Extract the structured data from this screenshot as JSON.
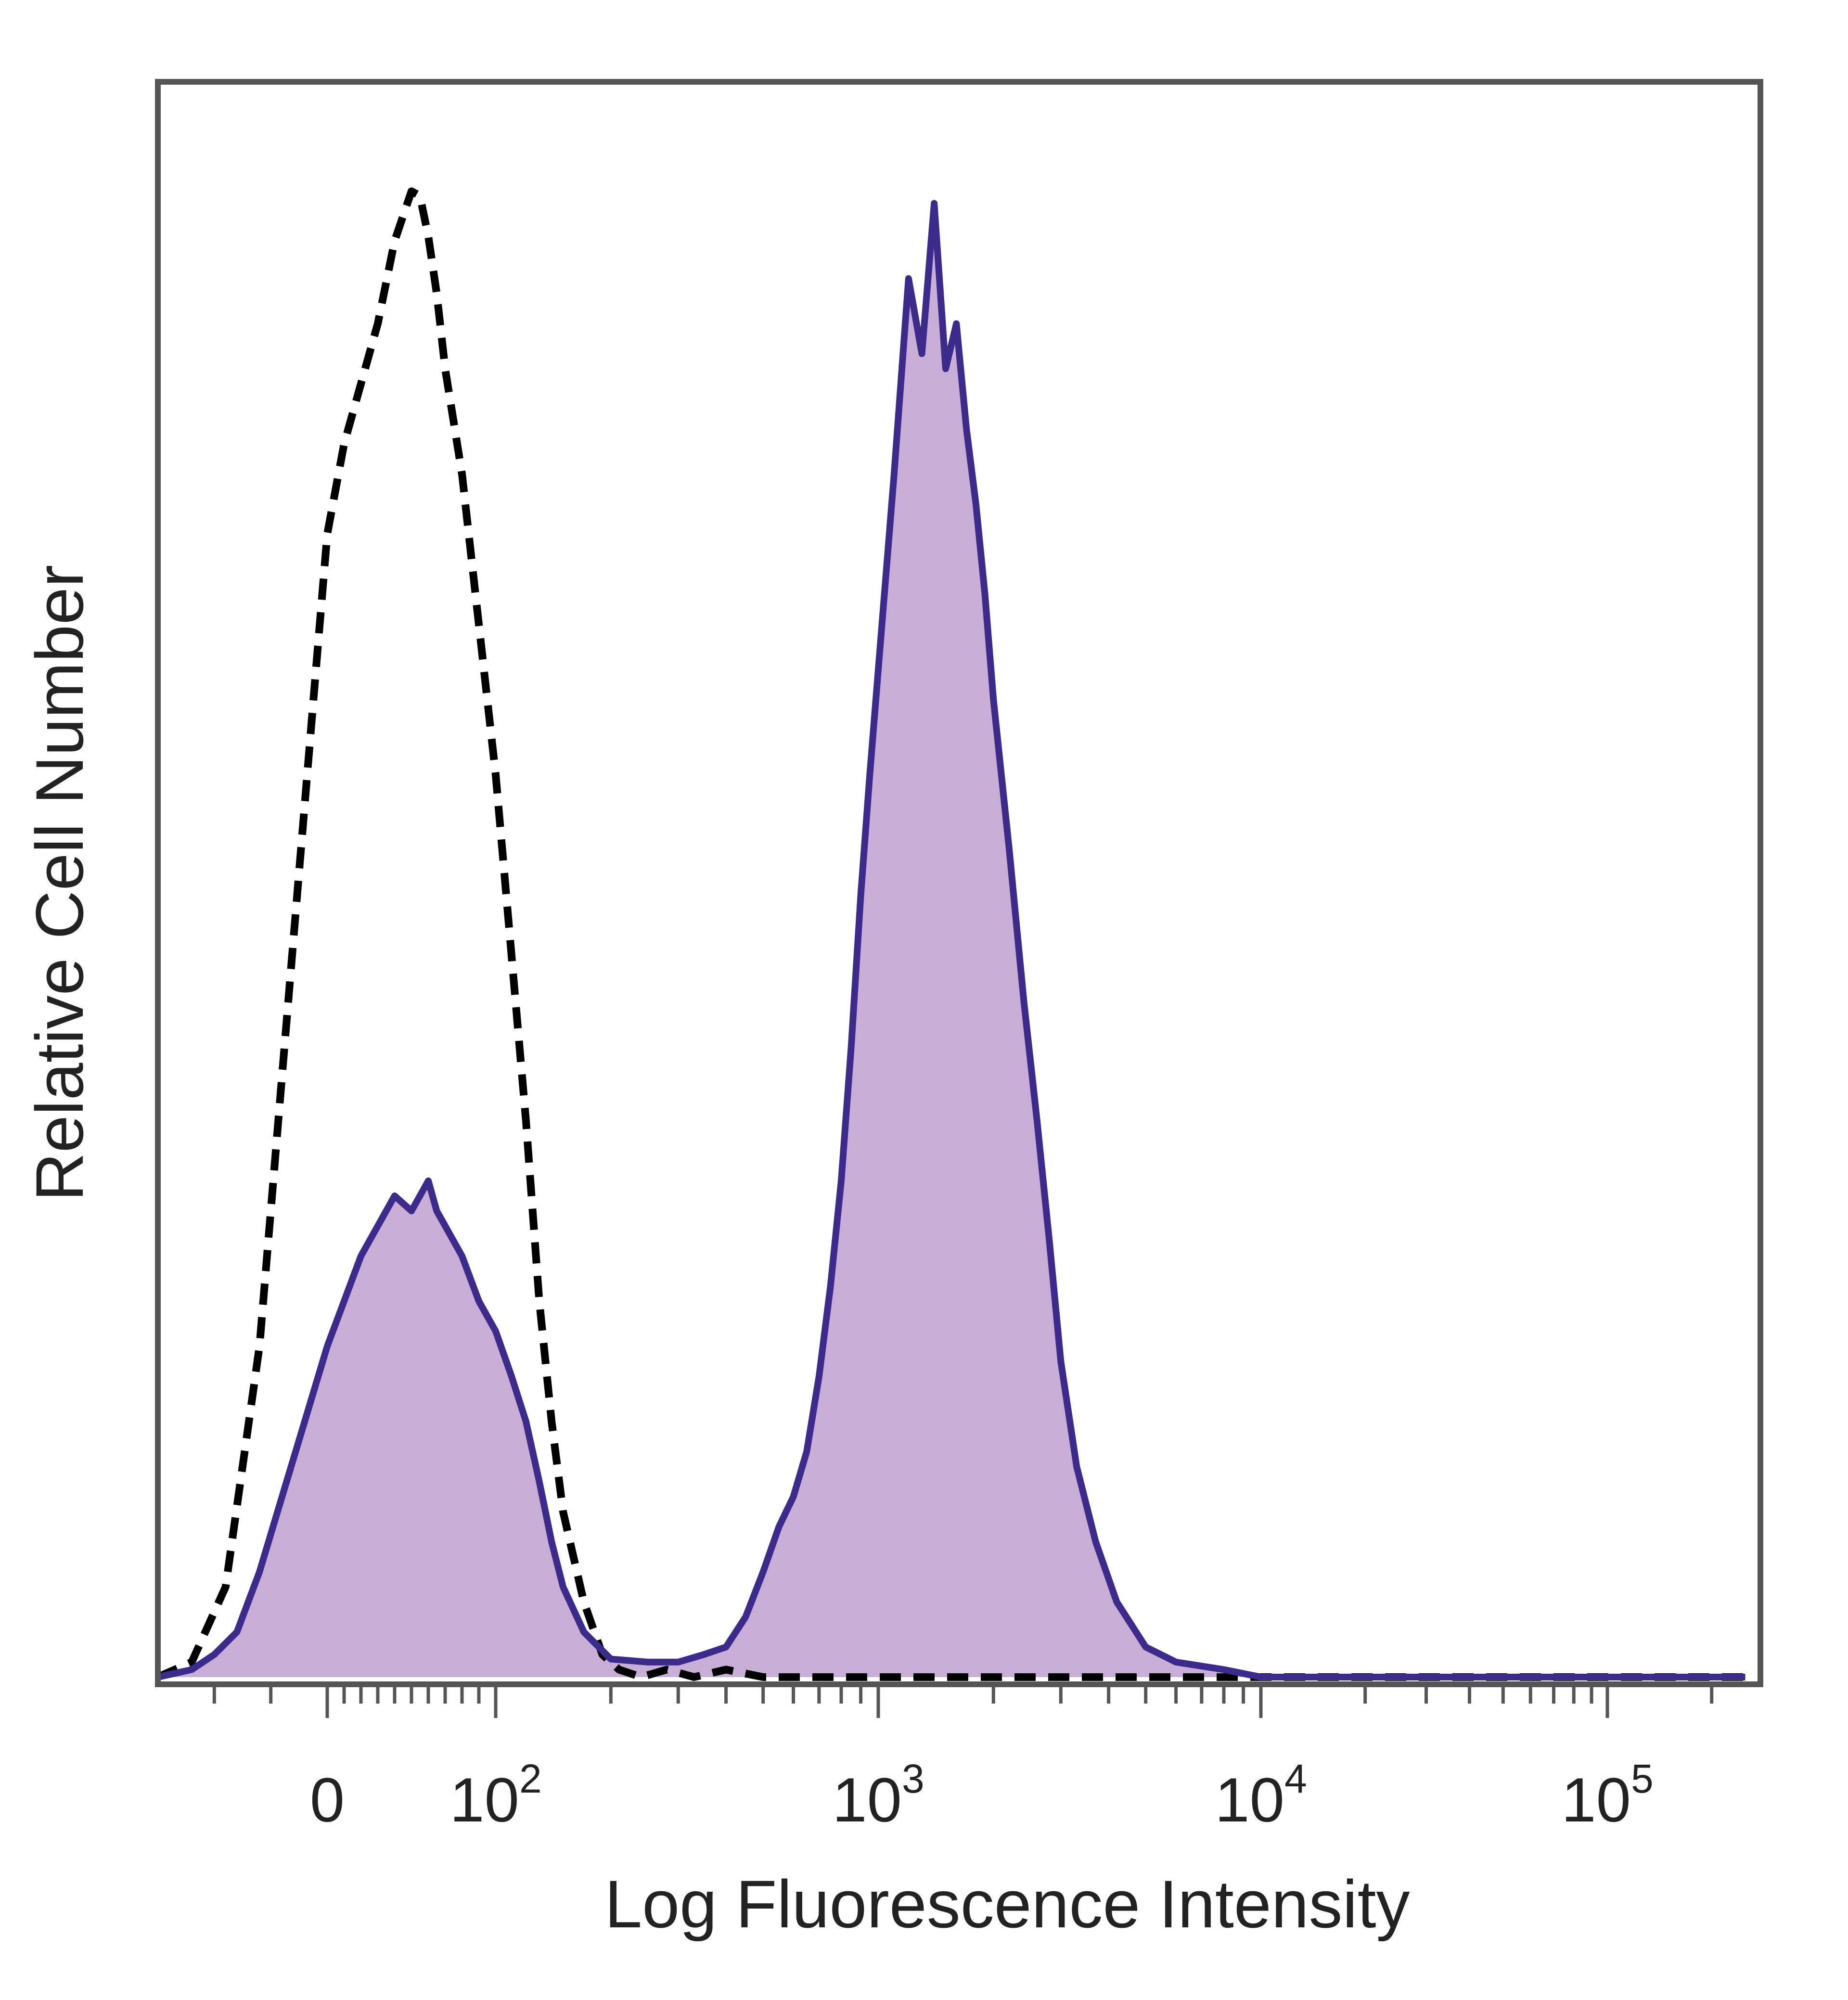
{
  "chart_data": {
    "type": "area",
    "xlabel": "Log Fluorescence Intensity",
    "ylabel": "Relative Cell Number",
    "x_scale": "biexponential",
    "grid": false,
    "legend": "none",
    "xlim": [
      -150,
      250000
    ],
    "ylim": [
      0,
      1.0
    ],
    "x_ticks": [
      {
        "value": 0,
        "label": "0",
        "exp": ""
      },
      {
        "value": 100,
        "label": "10",
        "exp": "2"
      },
      {
        "value": 1000,
        "label": "10",
        "exp": "3"
      },
      {
        "value": 10000,
        "label": "10",
        "exp": "4"
      },
      {
        "value": 100000,
        "label": "10",
        "exp": "5"
      }
    ],
    "series": [
      {
        "style": "dashed",
        "color": "#000000",
        "fill": "none",
        "x": [
          -150,
          -120,
          -90,
          -60,
          -40,
          -20,
          -10,
          0,
          10,
          20,
          30,
          40,
          50,
          55,
          60,
          65,
          70,
          80,
          90,
          100,
          110,
          120,
          130,
          140,
          150,
          170,
          190,
          210,
          240,
          280,
          330,
          400,
          500,
          700,
          1000,
          2000,
          5000,
          10000,
          50000,
          250000
        ],
        "y": [
          0,
          0.01,
          0.06,
          0.22,
          0.4,
          0.58,
          0.67,
          0.76,
          0.82,
          0.86,
          0.9,
          0.955,
          0.988,
          0.985,
          0.958,
          0.92,
          0.87,
          0.8,
          0.7,
          0.6,
          0.48,
          0.37,
          0.25,
          0.17,
          0.11,
          0.05,
          0.015,
          0.005,
          0,
          0.005,
          0,
          0.005,
          0,
          0,
          0,
          0,
          0,
          0,
          0,
          0
        ]
      },
      {
        "style": "solid",
        "color": "#3d2b8c",
        "fill": "#c8aed6",
        "x": [
          -150,
          -120,
          -100,
          -80,
          -60,
          -40,
          -20,
          0,
          10,
          20,
          30,
          40,
          50,
          55,
          60,
          65,
          70,
          80,
          90,
          100,
          110,
          120,
          130,
          140,
          150,
          170,
          200,
          250,
          300,
          350,
          400,
          450,
          500,
          550,
          600,
          650,
          700,
          750,
          800,
          850,
          900,
          950,
          1000,
          1100,
          1200,
          1300,
          1400,
          1500,
          1600,
          1700,
          1800,
          1900,
          2000,
          2200,
          2400,
          2600,
          2800,
          3000,
          3300,
          3700,
          4200,
          5000,
          6000,
          8000,
          10000,
          20000,
          50000,
          100000,
          250000
        ],
        "y": [
          0,
          0.005,
          0.015,
          0.03,
          0.07,
          0.12,
          0.17,
          0.22,
          0.25,
          0.28,
          0.3,
          0.32,
          0.31,
          0.32,
          0.33,
          0.31,
          0.3,
          0.28,
          0.25,
          0.23,
          0.2,
          0.17,
          0.13,
          0.09,
          0.06,
          0.03,
          0.012,
          0.01,
          0.01,
          0.015,
          0.02,
          0.04,
          0.07,
          0.1,
          0.12,
          0.15,
          0.2,
          0.26,
          0.33,
          0.42,
          0.52,
          0.6,
          0.67,
          0.8,
          0.93,
          0.88,
          0.98,
          0.87,
          0.9,
          0.83,
          0.78,
          0.72,
          0.65,
          0.55,
          0.45,
          0.37,
          0.29,
          0.21,
          0.14,
          0.09,
          0.05,
          0.02,
          0.01,
          0.005,
          0,
          0,
          0,
          0,
          0
        ]
      }
    ]
  }
}
